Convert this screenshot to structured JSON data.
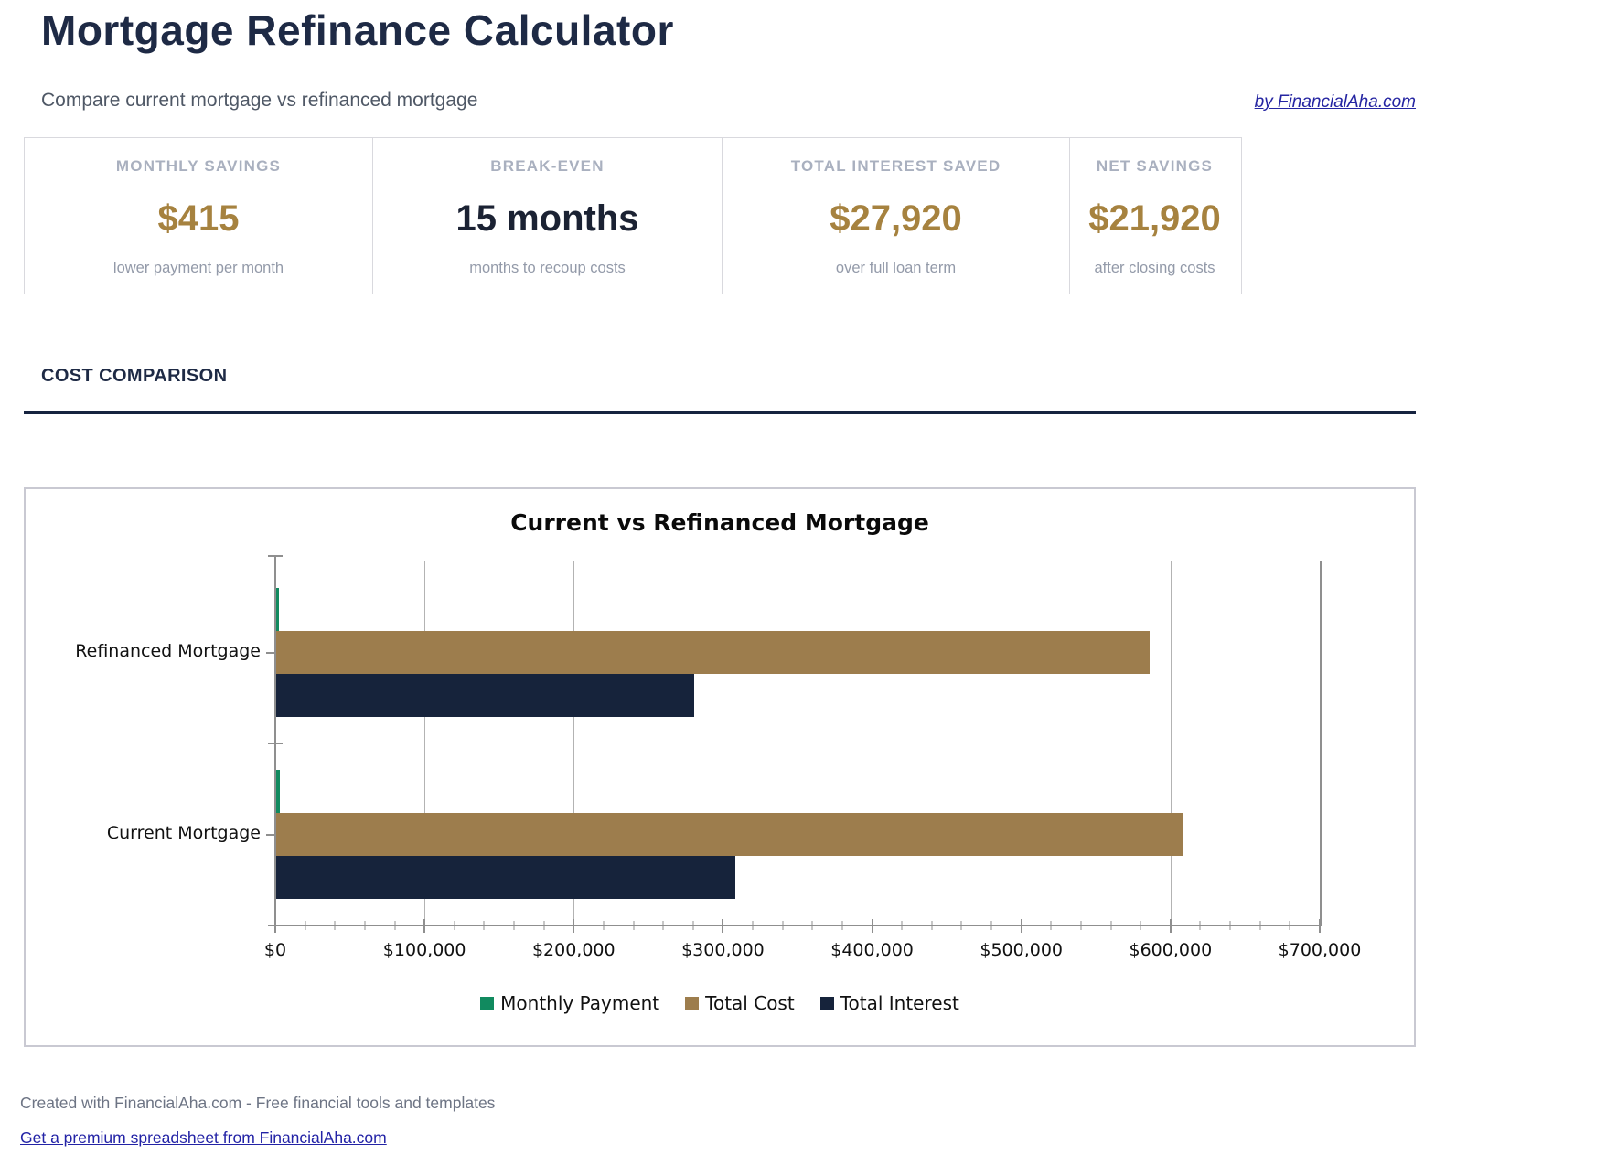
{
  "page": {
    "title": "Mortgage Refinance Calculator",
    "subtitle": "Compare current mortgage vs refinanced mortgage",
    "byline_link": "by FinancialAha.com"
  },
  "stats": {
    "cards": [
      {
        "label": "MONTHLY SAVINGS",
        "value": "$415",
        "caption": "lower payment per month",
        "value_color": "#a6823f"
      },
      {
        "label": "BREAK-EVEN",
        "value": "15 months",
        "caption": "months to recoup costs",
        "value_color": "#1b2233"
      },
      {
        "label": "TOTAL INTEREST SAVED",
        "value": "$27,920",
        "caption": "over full loan term",
        "value_color": "#a6823f"
      },
      {
        "label": "NET SAVINGS",
        "value": "$21,920",
        "caption": "after closing costs",
        "value_color": "#a6823f"
      }
    ]
  },
  "section": {
    "heading": "COST COMPARISON"
  },
  "chart_data": {
    "type": "bar",
    "orientation": "horizontal",
    "title": "Current vs Refinanced Mortgage",
    "categories": [
      "Refinanced Mortgage",
      "Current Mortgage"
    ],
    "series": [
      {
        "name": "Monthly Payment",
        "color": "#118a5f",
        "values": [
          1786,
          2201
        ]
      },
      {
        "name": "Total Cost",
        "color": "#9d7d4d",
        "values": [
          586080,
          608000
        ]
      },
      {
        "name": "Total Interest",
        "color": "#16233b",
        "values": [
          280080,
          308000
        ]
      }
    ],
    "x_ticks": [
      "$0",
      "$100,000",
      "$200,000",
      "$300,000",
      "$400,000",
      "$500,000",
      "$600,000",
      "$700,000"
    ],
    "xlim": [
      0,
      700000
    ],
    "x_tick_step": 100000,
    "x_minor_step": 20000,
    "grid": "vertical-major",
    "legend_position": "bottom",
    "axis_color": "#8f8f8f",
    "gridline_color": "#b3b3b3"
  },
  "footer": {
    "credit": "Created with FinancialAha.com - Free financial tools and templates",
    "link": "Get a premium spreadsheet from FinancialAha.com"
  }
}
